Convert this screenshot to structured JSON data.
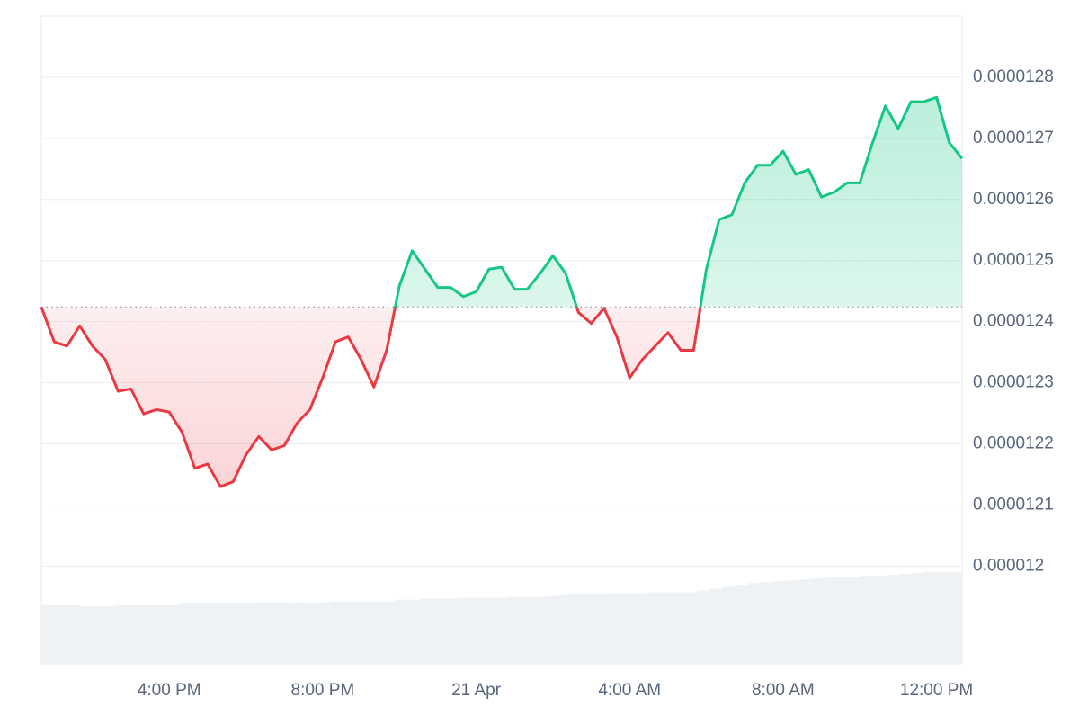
{
  "chart_data": {
    "type": "line",
    "categories": [
      null,
      null,
      null,
      null,
      null,
      null,
      null,
      null,
      null,
      null,
      "4:00 PM",
      null,
      null,
      null,
      null,
      null,
      null,
      null,
      null,
      null,
      null,
      null,
      "8:00 PM",
      null,
      null,
      null,
      null,
      null,
      null,
      null,
      null,
      null,
      null,
      null,
      "21 Apr",
      null,
      null,
      null,
      null,
      null,
      null,
      null,
      null,
      null,
      null,
      null,
      "4:00 AM",
      null,
      null,
      null,
      null,
      null,
      null,
      null,
      null,
      null,
      null,
      null,
      "8:00 AM",
      null,
      null,
      null,
      null,
      null,
      null,
      null,
      null,
      null,
      null,
      null,
      "12:00 PM",
      null,
      null
    ],
    "values": [
      1.2424e-05,
      1.2367e-05,
      1.236e-05,
      1.2393e-05,
      1.236e-05,
      1.2338e-05,
      1.2286e-05,
      1.229e-05,
      1.2249e-05,
      1.2256e-05,
      1.2252e-05,
      1.2219e-05,
      1.216e-05,
      1.2167e-05,
      1.213e-05,
      1.2138e-05,
      1.2182e-05,
      1.2212e-05,
      1.219e-05,
      1.2197e-05,
      1.2234e-05,
      1.2256e-05,
      1.2308e-05,
      1.2367e-05,
      1.2375e-05,
      1.2338e-05,
      1.2293e-05,
      1.2353e-05,
      1.2459e-05,
      1.2516e-05,
      1.2486e-05,
      1.2456e-05,
      1.2456e-05,
      1.2441e-05,
      1.2449e-05,
      1.2486e-05,
      1.2489e-05,
      1.2453e-05,
      1.2453e-05,
      1.2479e-05,
      1.2508e-05,
      1.2479e-05,
      1.2415e-05,
      1.2397e-05,
      1.2422e-05,
      1.2375e-05,
      1.2308e-05,
      1.2338e-05,
      1.236e-05,
      1.2382e-05,
      1.2353e-05,
      1.2353e-05,
      1.2486e-05,
      1.2567e-05,
      1.2575e-05,
      1.2627e-05,
      1.2656e-05,
      1.2656e-05,
      1.2679e-05,
      1.2641e-05,
      1.2649e-05,
      1.2604e-05,
      1.2612e-05,
      1.2627e-05,
      1.2627e-05,
      1.2693e-05,
      1.2753e-05,
      1.2716e-05,
      1.276e-05,
      1.276e-05,
      1.2767e-05,
      1.2693e-05,
      1.2667e-05
    ],
    "volume": [
      64,
      64,
      64,
      63,
      63,
      63,
      64,
      64,
      64,
      64,
      64,
      66,
      66,
      66,
      66,
      66,
      66,
      67,
      67,
      67,
      67,
      67,
      67,
      68,
      68,
      68,
      68,
      68,
      70,
      70,
      71,
      71,
      71,
      72,
      72,
      72,
      72,
      73,
      73,
      73,
      74,
      75,
      76,
      76,
      76,
      77,
      77,
      77,
      78,
      78,
      78,
      78,
      80,
      82,
      84,
      86,
      88,
      89,
      90,
      91,
      92,
      93,
      94,
      95,
      95,
      96,
      96,
      97,
      98,
      99,
      100,
      100,
      100
    ],
    "up_color": "#16c784",
    "down_color": "#ea3943",
    "ylim": [
      1.184e-05,
      1.29e-05
    ],
    "yticks": [
      1.2e-05,
      1.21e-05,
      1.22e-05,
      1.23e-05,
      1.24e-05,
      1.25e-05,
      1.26e-05,
      1.27e-05,
      1.28e-05
    ],
    "grid": true
  }
}
